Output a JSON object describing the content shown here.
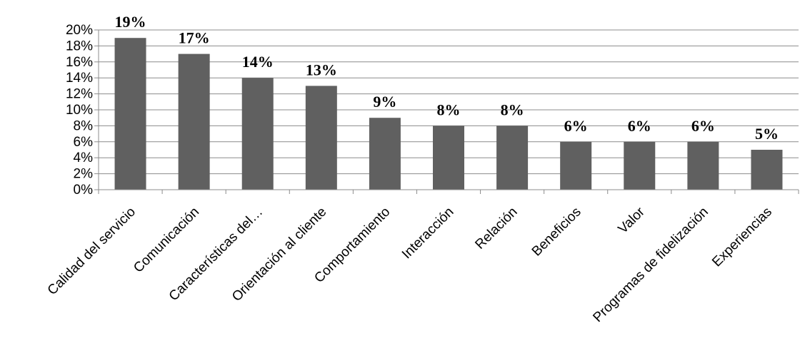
{
  "chart_data": {
    "type": "bar",
    "title": "",
    "xlabel": "",
    "ylabel": "",
    "categories": [
      "Calidad del servicio",
      "Comunicación",
      "Características del…",
      "Orientación al cliente",
      "Comportamiento",
      "Interacción",
      "Relación",
      "Beneficios",
      "Valor",
      "Programas de fidelización",
      "Experiencias"
    ],
    "values": [
      19,
      17,
      14,
      13,
      9,
      8,
      8,
      6,
      6,
      6,
      5
    ],
    "data_labels": [
      "19%",
      "17%",
      "14%",
      "13%",
      "9%",
      "8%",
      "8%",
      "6%",
      "6%",
      "6%",
      "5%"
    ],
    "yticks": [
      0,
      2,
      4,
      6,
      8,
      10,
      12,
      14,
      16,
      18,
      20
    ],
    "ytick_labels": [
      "0%",
      "2%",
      "4%",
      "6%",
      "8%",
      "10%",
      "12%",
      "14%",
      "16%",
      "18%",
      "20%"
    ],
    "ylim": [
      0,
      20
    ],
    "grid": true,
    "legend": "none",
    "colors": {
      "bar": "#606060",
      "grid": "#8c8c8c",
      "axis": "#8c8c8c"
    }
  }
}
